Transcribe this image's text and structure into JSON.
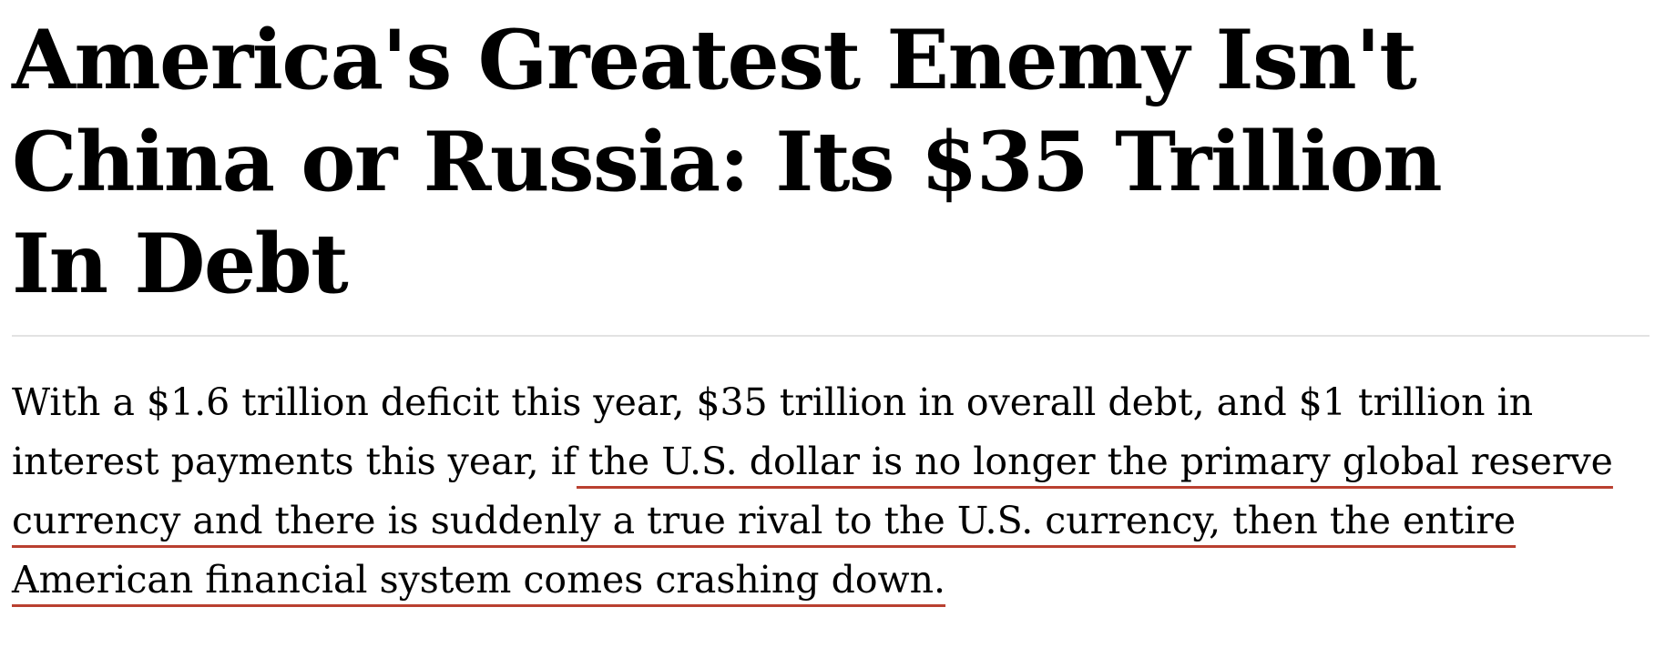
{
  "colors": {
    "text": "#000000",
    "underline": "#b94030",
    "divider": "#e2e2e2",
    "background": "#ffffff"
  },
  "article": {
    "headline": {
      "full_text": "America's Greatest Enemy Isn't China or Russia: Its $35 Trillion In Debt",
      "lines": [
        "America's Greatest Enemy Isn't",
        "China or Russia: Its $35 Trillion",
        "In Debt"
      ]
    },
    "body": {
      "full_text": "With a $1.6 trillion deficit this year, $35 trillion in overall debt, and $1 trillion in interest payments this year, if the U.S. dollar is no longer the primary global reserve currency and there is suddenly a true rival to the U.S. currency, then the entire American financial system comes crashing down.",
      "underlined_phrase": "the U.S. dollar is no longer the primary global reserve currency and there is suddenly a true rival to the U.S. currency, then the entire American financial system comes crashing down.",
      "lines": [
        {
          "plain": "With a $1.6 trillion deficit this year, $35 trillion in overall debt, and $1 trillion in",
          "underlined": ""
        },
        {
          "plain": "interest payments this year, if",
          "underlined": " the U.S. dollar is no longer the primary global reserve"
        },
        {
          "plain": "",
          "underlined": "currency and there is suddenly a true rival to the U.S. currency, then the entire"
        },
        {
          "plain": "",
          "underlined": "American financial system comes crashing down."
        }
      ]
    }
  }
}
